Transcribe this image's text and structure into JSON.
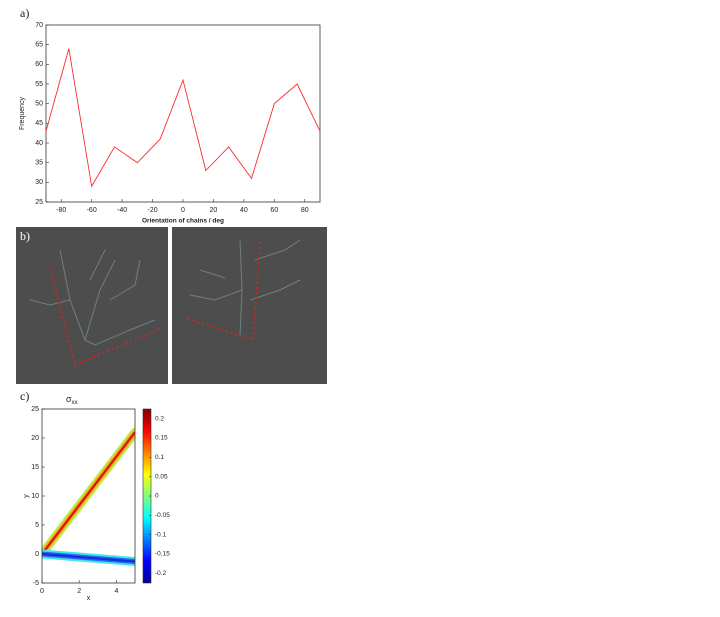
{
  "panel_labels": [
    "a)",
    "b)",
    "c)"
  ],
  "chart_data": [
    {
      "type": "line",
      "xlabel": "Orientation of chains / deg",
      "ylabel": "Frequency",
      "x": [
        -90,
        -75,
        -60,
        -45,
        -30,
        -15,
        0,
        15,
        30,
        45,
        60,
        75,
        90
      ],
      "series": [
        {
          "color": "#ff2a2a",
          "values": [
            43,
            64,
            29,
            39,
            35,
            41,
            56,
            33,
            39,
            31,
            50,
            55,
            43
          ]
        }
      ],
      "xlim": [
        -90,
        90
      ],
      "xticks": [
        -80,
        -60,
        -40,
        -20,
        0,
        20,
        40,
        60,
        80
      ],
      "ylim": [
        25,
        70
      ],
      "yticks": [
        25,
        30,
        35,
        40,
        45,
        50,
        55,
        60,
        65,
        70
      ]
    },
    {
      "type": "field",
      "title": "σ",
      "title_sub": "xx",
      "xlabel": "x",
      "ylabel": "y",
      "series": [
        {
          "color": "#d01010",
          "x": [
            0,
            5
          ],
          "values": [
            0,
            21
          ]
        },
        {
          "color": "#1030d0",
          "x": [
            0,
            5
          ],
          "values": [
            0,
            -1.3
          ]
        }
      ],
      "xlim": [
        0,
        5
      ],
      "xticks": [
        0,
        2,
        4
      ],
      "ylim": [
        -5,
        25
      ],
      "yticks": [
        -5,
        0,
        5,
        10,
        15,
        20,
        25
      ],
      "colorbar": {
        "lim": [
          -0.225,
          0.225
        ],
        "ticks": [
          0.2,
          0.15,
          0.1,
          0.05,
          0,
          -0.05,
          -0.1,
          -0.15,
          -0.2
        ]
      }
    }
  ]
}
